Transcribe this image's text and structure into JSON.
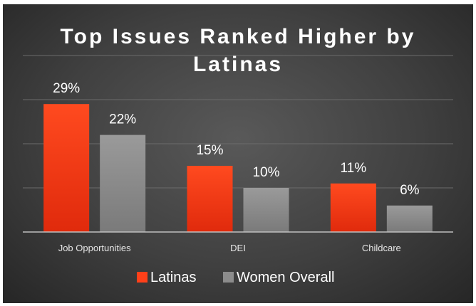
{
  "chart_data": {
    "type": "bar",
    "title_lines": [
      "Top Issues Ranked Higher by",
      "Latinas"
    ],
    "categories": [
      "Job Opportunities",
      "DEI",
      "Childcare"
    ],
    "series": [
      {
        "name": "Latinas",
        "values": [
          29,
          15,
          11
        ],
        "labels": [
          "29%",
          "15%",
          "11%"
        ],
        "color": "#ff4019"
      },
      {
        "name": "Women Overall",
        "values": [
          22,
          10,
          6
        ],
        "labels": [
          "22%",
          "10%",
          "6%"
        ],
        "color": "#8c8c8c"
      }
    ],
    "ylim": [
      0,
      40
    ],
    "grid": true,
    "legend_position": "bottom",
    "background": "#404040"
  }
}
